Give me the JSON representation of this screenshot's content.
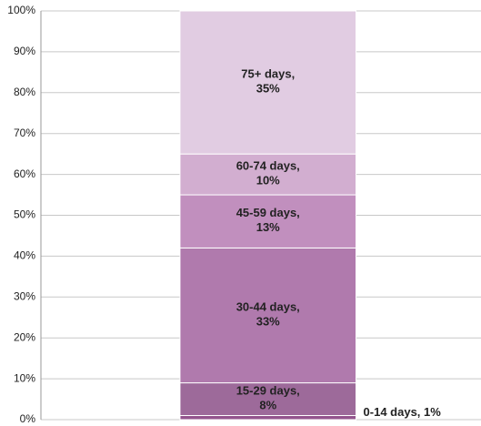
{
  "chart_data": {
    "type": "stacked_bar_percent",
    "categories": [
      null
    ],
    "series": [
      {
        "name": "0-14 days",
        "color": "#93548d",
        "values": [
          1
        ],
        "value_labels": [
          "0-14 days, 1%"
        ]
      },
      {
        "name": "15-29 days",
        "color": "#9d6a9a",
        "values": [
          8
        ],
        "value_labels": [
          "15-29 days, 8%"
        ]
      },
      {
        "name": "30-44 days",
        "color": "#b07aad",
        "values": [
          33
        ],
        "value_labels": [
          "30-44 days, 33%"
        ]
      },
      {
        "name": "45-59 days",
        "color": "#c18fbe",
        "values": [
          13
        ],
        "value_labels": [
          "45-59 days, 13%"
        ]
      },
      {
        "name": "60-74 days",
        "color": "#d2aed0",
        "values": [
          10
        ],
        "value_labels": [
          "60-74 days, 10%"
        ]
      },
      {
        "name": "75+ days",
        "color": "#e1cce2",
        "values": [
          35
        ],
        "value_labels": [
          "75+ days, 35%"
        ]
      }
    ],
    "ylim": [
      0,
      100
    ],
    "yticks": [
      {
        "value": 0,
        "label": "0%"
      },
      {
        "value": 10,
        "label": "10%"
      },
      {
        "value": 20,
        "label": "20%"
      },
      {
        "value": 30,
        "label": "30%"
      },
      {
        "value": 40,
        "label": "40%"
      },
      {
        "value": 50,
        "label": "50%"
      },
      {
        "value": 60,
        "label": "60%"
      },
      {
        "value": 70,
        "label": "70%"
      },
      {
        "value": 80,
        "label": "80%"
      },
      {
        "value": 90,
        "label": "90%"
      },
      {
        "value": 100,
        "label": "100%"
      }
    ],
    "grid": true
  }
}
